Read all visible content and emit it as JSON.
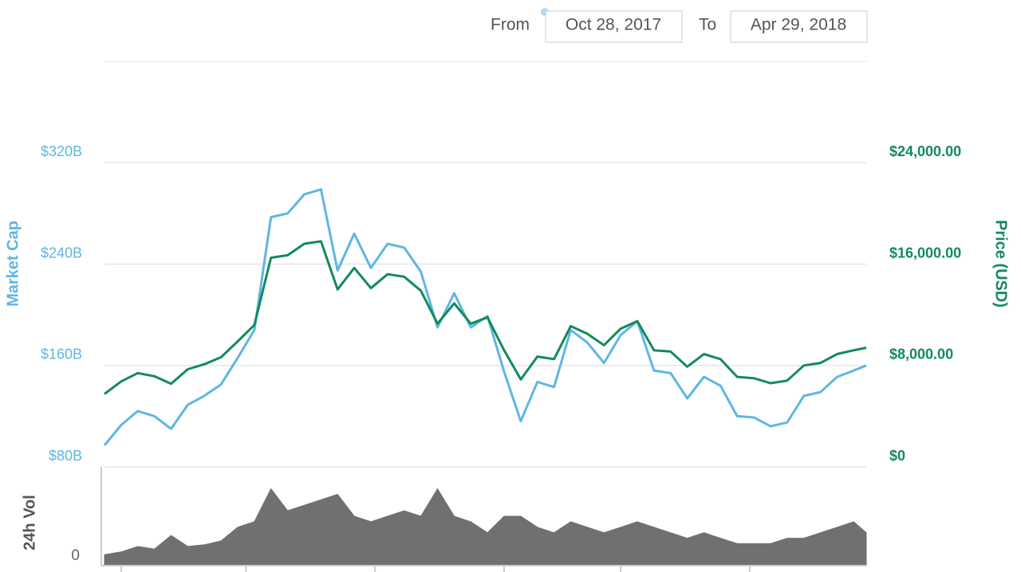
{
  "range": {
    "from_label": "From",
    "from": "Oct 28, 2017",
    "to_label": "To",
    "to": "Apr 29, 2018"
  },
  "chart_data": [
    {
      "type": "line",
      "ylabel": "Market Cap",
      "ylabel_color": "#5fb6e3",
      "y2label": "Price (USD)",
      "y2label_color": "#138a5c",
      "x": [
        "2017-10-28",
        "2017-11-01",
        "2017-11-05",
        "2017-11-09",
        "2017-11-13",
        "2017-11-17",
        "2017-11-21",
        "2017-11-25",
        "2017-11-29",
        "2017-12-03",
        "2017-12-07",
        "2017-12-11",
        "2017-12-15",
        "2017-12-19",
        "2017-12-23",
        "2017-12-27",
        "2017-12-31",
        "2018-01-04",
        "2018-01-08",
        "2018-01-12",
        "2018-01-16",
        "2018-01-20",
        "2018-01-24",
        "2018-01-28",
        "2018-02-01",
        "2018-02-05",
        "2018-02-09",
        "2018-02-13",
        "2018-02-17",
        "2018-02-21",
        "2018-02-25",
        "2018-03-01",
        "2018-03-05",
        "2018-03-09",
        "2018-03-13",
        "2018-03-17",
        "2018-03-21",
        "2018-03-25",
        "2018-03-29",
        "2018-04-02",
        "2018-04-06",
        "2018-04-10",
        "2018-04-14",
        "2018-04-18",
        "2018-04-22",
        "2018-04-26",
        "2018-04-29"
      ],
      "xlim": [
        "2017-10-28",
        "2018-04-29"
      ],
      "xticks": [
        "2017-11-01",
        "2017-12-01",
        "2018-01-01",
        "2018-02-01",
        "2018-03-01",
        "2018-04-01"
      ],
      "ylim": [
        80,
        400
      ],
      "yticks": [
        {
          "value": 80,
          "label": "$80B"
        },
        {
          "value": 160,
          "label": "$160B"
        },
        {
          "value": 240,
          "label": "$240B"
        },
        {
          "value": 320,
          "label": "$320B"
        }
      ],
      "y2lim": [
        0,
        32000
      ],
      "y2ticks": [
        {
          "value": 0,
          "label": "$0"
        },
        {
          "value": 8000,
          "label": "$8,000.00"
        },
        {
          "value": 16000,
          "label": "$16,000.00"
        },
        {
          "value": 24000,
          "label": "$24,000.00"
        }
      ],
      "grid": true,
      "series": [
        {
          "color": "#5fb6e3",
          "values": [
            97,
            113,
            124,
            120,
            110,
            129,
            136,
            145,
            166,
            188,
            277,
            280,
            295,
            299,
            235,
            264,
            237,
            256,
            253,
            234,
            190,
            217,
            190,
            199,
            155,
            116,
            147,
            143,
            188,
            178,
            162,
            184,
            195,
            156,
            154,
            134,
            151,
            144,
            120,
            119,
            112,
            115,
            136,
            139,
            151,
            156,
            160
          ]
        },
        {
          "color": "#138a5c",
          "axis": "y2",
          "values": [
            5750,
            6740,
            7400,
            7150,
            6550,
            7700,
            8100,
            8650,
            9900,
            11200,
            16500,
            16700,
            17600,
            17800,
            14000,
            15700,
            14100,
            15200,
            15000,
            13900,
            11300,
            12900,
            11300,
            11800,
            9200,
            6900,
            8700,
            8500,
            11100,
            10500,
            9600,
            10900,
            11500,
            9200,
            9100,
            7900,
            8900,
            8500,
            7100,
            7000,
            6600,
            6800,
            8000,
            8200,
            8900,
            9200,
            9400
          ]
        }
      ]
    },
    {
      "type": "area",
      "ylabel": "24h Vol",
      "x": [
        "2017-10-28",
        "2017-11-01",
        "2017-11-05",
        "2017-11-09",
        "2017-11-13",
        "2017-11-17",
        "2017-11-21",
        "2017-11-25",
        "2017-11-29",
        "2017-12-03",
        "2017-12-07",
        "2017-12-11",
        "2017-12-15",
        "2017-12-19",
        "2017-12-23",
        "2017-12-27",
        "2017-12-31",
        "2018-01-04",
        "2018-01-08",
        "2018-01-12",
        "2018-01-16",
        "2018-01-20",
        "2018-01-24",
        "2018-01-28",
        "2018-02-01",
        "2018-02-05",
        "2018-02-09",
        "2018-02-13",
        "2018-02-17",
        "2018-02-21",
        "2018-02-25",
        "2018-03-01",
        "2018-03-05",
        "2018-03-09",
        "2018-03-13",
        "2018-03-17",
        "2018-03-21",
        "2018-03-25",
        "2018-03-29",
        "2018-04-02",
        "2018-04-06",
        "2018-04-10",
        "2018-04-14",
        "2018-04-18",
        "2018-04-22",
        "2018-04-26",
        "2018-04-29"
      ],
      "xlim": [
        "2017-10-28",
        "2018-04-29"
      ],
      "ylim": [
        0,
        18
      ],
      "yticks": [
        0
      ],
      "color": "#707070",
      "values": [
        2.0,
        2.5,
        3.5,
        3.0,
        5.5,
        3.5,
        3.8,
        4.5,
        7,
        8,
        14,
        10,
        11,
        12,
        13,
        9,
        8,
        9,
        10,
        9,
        14,
        9,
        8,
        6,
        9,
        9,
        7,
        6,
        8,
        7,
        6,
        7,
        8,
        7,
        6,
        5,
        6,
        5,
        4,
        4,
        4,
        5,
        5,
        6,
        7,
        8,
        6
      ]
    }
  ]
}
